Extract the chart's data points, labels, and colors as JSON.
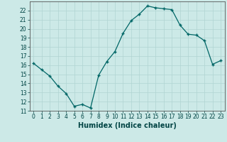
{
  "x": [
    0,
    1,
    2,
    3,
    4,
    5,
    6,
    7,
    8,
    9,
    10,
    11,
    12,
    13,
    14,
    15,
    16,
    17,
    18,
    19,
    20,
    21,
    22,
    23
  ],
  "y": [
    16.2,
    15.5,
    14.8,
    13.7,
    12.9,
    11.5,
    11.7,
    11.3,
    14.9,
    16.4,
    17.5,
    19.5,
    20.9,
    21.6,
    22.5,
    22.3,
    22.2,
    22.1,
    20.4,
    19.4,
    19.3,
    18.7,
    16.1,
    16.5
  ],
  "xlabel": "Humidex (Indice chaleur)",
  "ylim": [
    11,
    23
  ],
  "xlim": [
    -0.5,
    23.5
  ],
  "bg_color": "#cce9e7",
  "grid_color": "#b0d4d2",
  "line_color": "#006666",
  "marker_color": "#006666",
  "xticks": [
    0,
    1,
    2,
    3,
    4,
    5,
    6,
    7,
    8,
    9,
    10,
    11,
    12,
    13,
    14,
    15,
    16,
    17,
    18,
    19,
    20,
    21,
    22,
    23
  ],
  "yticks": [
    11,
    12,
    13,
    14,
    15,
    16,
    17,
    18,
    19,
    20,
    21,
    22
  ],
  "tick_fontsize": 5.5,
  "xlabel_fontsize": 7.0,
  "xlabel_bold": true
}
